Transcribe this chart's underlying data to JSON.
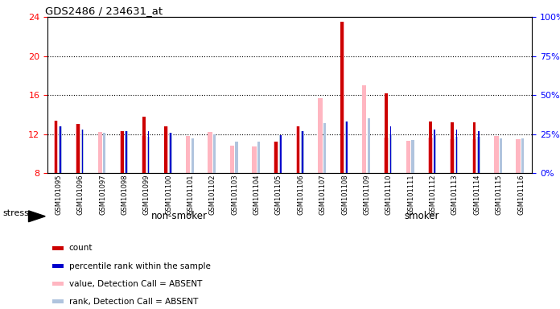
{
  "title": "GDS2486 / 234631_at",
  "samples": [
    "GSM101095",
    "GSM101096",
    "GSM101097",
    "GSM101098",
    "GSM101099",
    "GSM101100",
    "GSM101101",
    "GSM101102",
    "GSM101103",
    "GSM101104",
    "GSM101105",
    "GSM101106",
    "GSM101107",
    "GSM101108",
    "GSM101109",
    "GSM101110",
    "GSM101111",
    "GSM101112",
    "GSM101113",
    "GSM101114",
    "GSM101115",
    "GSM101116"
  ],
  "group": [
    "non-smoker",
    "non-smoker",
    "non-smoker",
    "non-smoker",
    "non-smoker",
    "non-smoker",
    "non-smoker",
    "non-smoker",
    "non-smoker",
    "non-smoker",
    "non-smoker",
    "non-smoker",
    "smoker",
    "smoker",
    "smoker",
    "smoker",
    "smoker",
    "smoker",
    "smoker",
    "smoker",
    "smoker",
    "smoker"
  ],
  "count": [
    13.4,
    13.0,
    null,
    12.3,
    13.8,
    12.8,
    null,
    null,
    null,
    null,
    11.2,
    12.8,
    null,
    23.5,
    null,
    16.2,
    null,
    13.3,
    13.2,
    13.2,
    null,
    null
  ],
  "percentile": [
    30,
    28,
    null,
    27,
    27,
    26,
    null,
    null,
    null,
    null,
    24,
    27,
    null,
    33,
    null,
    30,
    null,
    28,
    28,
    27,
    null,
    null
  ],
  "value_absent": [
    13.4,
    13.0,
    12.2,
    12.3,
    11.8,
    12.8,
    11.8,
    12.2,
    10.8,
    10.7,
    11.2,
    12.8,
    15.7,
    23.5,
    17.0,
    11.6,
    11.3,
    11.6,
    11.5,
    11.5,
    11.8,
    11.5
  ],
  "rank_absent": [
    30,
    28,
    26,
    27,
    23,
    26,
    22,
    25,
    20,
    20,
    24,
    27,
    32,
    33,
    35,
    25,
    21,
    24,
    23,
    23,
    22,
    22
  ],
  "ylim_left": [
    8,
    24
  ],
  "ylim_right": [
    0,
    100
  ],
  "yticks_left": [
    8,
    12,
    16,
    20,
    24
  ],
  "yticks_right": [
    0,
    25,
    50,
    75,
    100
  ],
  "color_count": "#cc0000",
  "color_percentile": "#0000cc",
  "color_value_absent": "#ffb6c1",
  "color_rank_absent": "#b0c4de",
  "bg_plot": "#ffffff",
  "bg_nonsmoker": "#90ee90",
  "bg_smoker": "#32cd32",
  "non_smoker_count": 12,
  "smoker_count": 10
}
